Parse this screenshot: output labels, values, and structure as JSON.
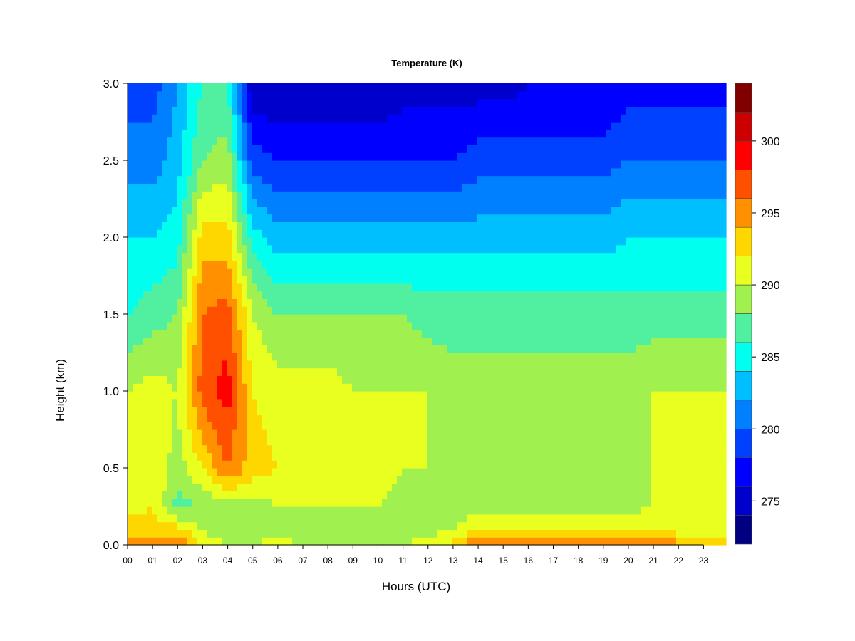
{
  "chart_data": {
    "type": "heatmap",
    "title": "Temperature (K)",
    "xlabel": "Hours (UTC)",
    "ylabel": "Height (km)",
    "xlim": [
      0,
      23.9
    ],
    "ylim": [
      0,
      3.0
    ],
    "x_ticks": [
      0,
      1,
      2,
      3,
      4,
      5,
      6,
      7,
      8,
      9,
      10,
      11,
      12,
      13,
      14,
      15,
      16,
      17,
      18,
      19,
      20,
      21,
      22,
      23
    ],
    "x_tick_labels": [
      "00",
      "01",
      "02",
      "03",
      "04",
      "05",
      "06",
      "07",
      "08",
      "09",
      "10",
      "11",
      "12",
      "13",
      "14",
      "15",
      "16",
      "17",
      "18",
      "19",
      "20",
      "21",
      "22",
      "23"
    ],
    "y_ticks": [
      0.0,
      0.5,
      1.0,
      1.5,
      2.0,
      2.5,
      3.0
    ],
    "y_tick_labels": [
      "0.0",
      "0.5",
      "1.0",
      "1.5",
      "2.0",
      "2.5",
      "3.0"
    ],
    "colorbar": {
      "levels": [
        272,
        274,
        276,
        278,
        280,
        282,
        284,
        286,
        288,
        290,
        292,
        294,
        296,
        298,
        300,
        302,
        304
      ],
      "colors": [
        "#000080",
        "#0000cd",
        "#0000ff",
        "#0040ff",
        "#0080ff",
        "#00bfff",
        "#00ffee",
        "#50f0a0",
        "#a0f050",
        "#e8ff20",
        "#ffd700",
        "#ff9000",
        "#ff5000",
        "#ff0000",
        "#cc0000",
        "#800000"
      ],
      "tick_values": [
        275,
        280,
        285,
        290,
        295,
        300
      ],
      "tick_labels": [
        "275",
        "280",
        "285",
        "290",
        "295",
        "300"
      ]
    },
    "hours": [
      0,
      1,
      2,
      3,
      4,
      5,
      6,
      7,
      8,
      9,
      10,
      11,
      12,
      13,
      14,
      15,
      16,
      17,
      18,
      19,
      20,
      21,
      22,
      23,
      23.9
    ],
    "heights_km": [
      0.0,
      0.1,
      0.25,
      0.5,
      1.0,
      1.5,
      2.0,
      2.5,
      3.0
    ],
    "temperature_K": [
      [
        297,
        293,
        291,
        291,
        290,
        286,
        284,
        281,
        279
      ],
      [
        296,
        293,
        292,
        292,
        291,
        287,
        284,
        281,
        279
      ],
      [
        297,
        293,
        287,
        289,
        290,
        288,
        285,
        283,
        282
      ],
      [
        291,
        290,
        288,
        292,
        297,
        296,
        293,
        288,
        286
      ],
      [
        290,
        289,
        289,
        296,
        299,
        297,
        293,
        289,
        286
      ],
      [
        290,
        289,
        289,
        293,
        292,
        290,
        285,
        279,
        274
      ],
      [
        291,
        289,
        290,
        292,
        291,
        288,
        283,
        278,
        274
      ],
      [
        290,
        289,
        290,
        292,
        291,
        288,
        283,
        278,
        274
      ],
      [
        290,
        289,
        290,
        292,
        291,
        288,
        283,
        278,
        274
      ],
      [
        290,
        289,
        290,
        291,
        290,
        288,
        283,
        278,
        274
      ],
      [
        290,
        289,
        290,
        291,
        290,
        288,
        283,
        278,
        274
      ],
      [
        290,
        289,
        289,
        290,
        290,
        288,
        283,
        278,
        275
      ],
      [
        291,
        289,
        289,
        290,
        290,
        287,
        283,
        278,
        275
      ],
      [
        293,
        290,
        289,
        289,
        289,
        287,
        283,
        278,
        275
      ],
      [
        296,
        292,
        289,
        289,
        289,
        287,
        283,
        279,
        275
      ],
      [
        296,
        292,
        289,
        289,
        289,
        287,
        283,
        279,
        275
      ],
      [
        297,
        292,
        289,
        289,
        289,
        287,
        283,
        279,
        276
      ],
      [
        297,
        292,
        289,
        289,
        289,
        287,
        283,
        279,
        276
      ],
      [
        297,
        292,
        289,
        289,
        289,
        287,
        283,
        279,
        276
      ],
      [
        296,
        292,
        289,
        289,
        289,
        287,
        283,
        279,
        276
      ],
      [
        297,
        292,
        289,
        289,
        289,
        287,
        284,
        280,
        277
      ],
      [
        296,
        292,
        290,
        290,
        290,
        287,
        284,
        280,
        277
      ],
      [
        295,
        291,
        290,
        291,
        290,
        287,
        284,
        280,
        277
      ],
      [
        293,
        291,
        290,
        291,
        290,
        287,
        284,
        280,
        277
      ],
      [
        293,
        291,
        290,
        290,
        290,
        287,
        284,
        280,
        277
      ]
    ]
  }
}
